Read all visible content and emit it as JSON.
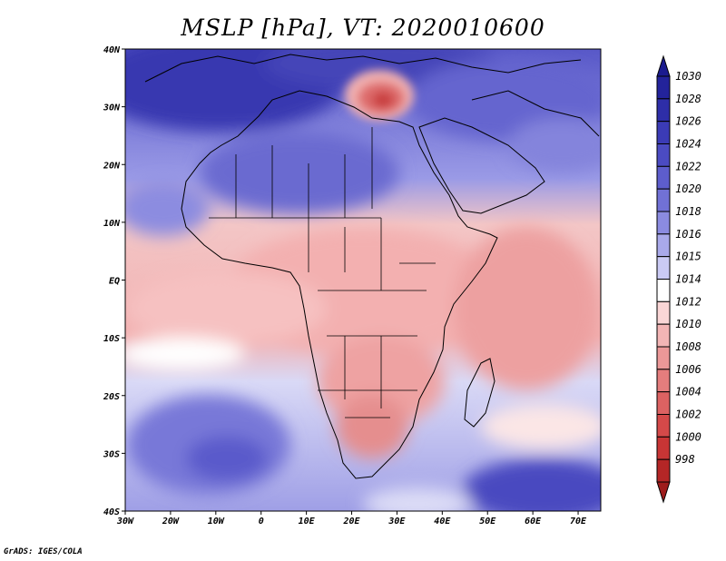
{
  "title": "MSLP [hPa], VT: 2020010600",
  "credit": "GrADS: IGES/COLA",
  "map": {
    "lat_labels": [
      "40N",
      "30N",
      "20N",
      "10N",
      "EQ",
      "10S",
      "20S",
      "30S",
      "40S"
    ],
    "lon_labels": [
      "30W",
      "20W",
      "10W",
      "0",
      "10E",
      "20E",
      "30E",
      "40E",
      "50E",
      "60E",
      "70E"
    ]
  },
  "colorbar": {
    "levels": [
      {
        "label": "1030",
        "color": "#23239b"
      },
      {
        "label": "1028",
        "color": "#2e2ea8"
      },
      {
        "label": "1026",
        "color": "#3b3bb6"
      },
      {
        "label": "1024",
        "color": "#4b4bc2"
      },
      {
        "label": "1022",
        "color": "#5d5dcc"
      },
      {
        "label": "1020",
        "color": "#7171d6"
      },
      {
        "label": "1018",
        "color": "#8b8be0"
      },
      {
        "label": "1016",
        "color": "#a9a9ea"
      },
      {
        "label": "1015",
        "color": "#cacaf4"
      },
      {
        "label": "1014",
        "color": "#ffffff"
      },
      {
        "label": "1012",
        "color": "#fad6d6"
      },
      {
        "label": "1010",
        "color": "#f3b5b5"
      },
      {
        "label": "1008",
        "color": "#ec9898"
      },
      {
        "label": "1006",
        "color": "#e47d7d"
      },
      {
        "label": "1004",
        "color": "#dc6262"
      },
      {
        "label": "1002",
        "color": "#d44949"
      },
      {
        "label": "1000",
        "color": "#c83535"
      },
      {
        "label": "998",
        "color": "#b42626"
      }
    ],
    "top_arrow_color": "#1b1b8f",
    "bottom_arrow_color": "#9e1c1c"
  }
}
